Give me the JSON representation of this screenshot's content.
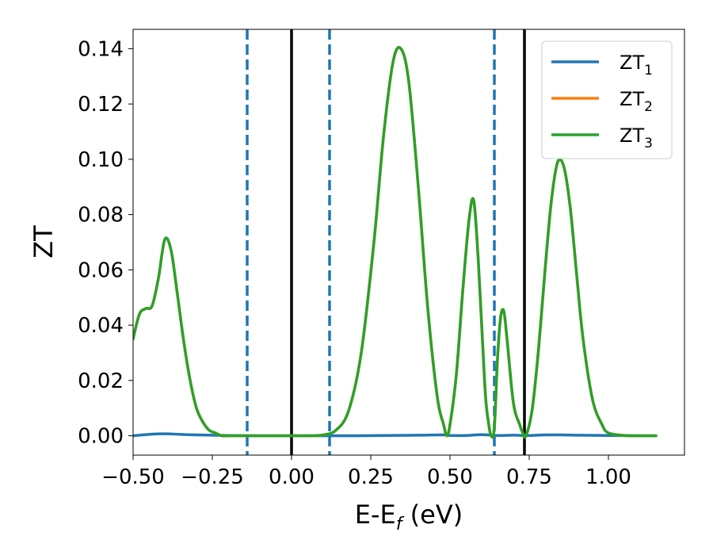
{
  "chart_data": {
    "type": "line",
    "xlabel": "E-E",
    "xlabel_sub": "f",
    "xlabel_unit": " (eV)",
    "ylabel": "ZT",
    "xlim": [
      -0.5,
      1.24
    ],
    "ylim": [
      -0.007,
      0.147
    ],
    "x_ticks": [
      -0.5,
      -0.25,
      0.0,
      0.25,
      0.5,
      0.75,
      1.0
    ],
    "x_tick_labels": [
      "−0.50",
      "−0.25",
      "0.00",
      "0.25",
      "0.50",
      "0.75",
      "1.00"
    ],
    "y_ticks": [
      0.0,
      0.02,
      0.04,
      0.06,
      0.08,
      0.1,
      0.12,
      0.14
    ],
    "y_tick_labels": [
      "0.00",
      "0.02",
      "0.04",
      "0.06",
      "0.08",
      "0.10",
      "0.12",
      "0.14"
    ],
    "grid": false,
    "legend_position": "top-right",
    "vertical_lines": [
      {
        "x": -0.14,
        "style": "dashed",
        "color": "#1f77b4"
      },
      {
        "x": 0.0,
        "style": "solid",
        "color": "#000000"
      },
      {
        "x": 0.12,
        "style": "dashed",
        "color": "#1f77b4"
      },
      {
        "x": 0.64,
        "style": "dashed",
        "color": "#1f77b4"
      },
      {
        "x": 0.735,
        "style": "solid",
        "color": "#000000"
      }
    ],
    "series": [
      {
        "name": "ZT",
        "sub": "1",
        "color": "#1f77b4",
        "x": [
          -0.5,
          -0.45,
          -0.4,
          -0.35,
          -0.3,
          -0.2,
          -0.1,
          0.0,
          0.1,
          0.2,
          0.3,
          0.4,
          0.48,
          0.5,
          0.55,
          0.6,
          0.65,
          0.7,
          0.75,
          0.8,
          0.85,
          0.9,
          1.0,
          1.1,
          1.15
        ],
        "y": [
          0.0,
          0.0005,
          0.0007,
          0.0005,
          0.0003,
          0.0001,
          0.0,
          0.0,
          0.0,
          0.0,
          0.0001,
          0.0002,
          0.0003,
          0.0001,
          0.0001,
          0.0004,
          0.0001,
          0.0002,
          0.0001,
          0.0003,
          0.0003,
          0.0002,
          0.0001,
          0.0,
          0.0
        ]
      },
      {
        "name": "ZT",
        "sub": "2",
        "color": "#ff7f0e",
        "x": [
          -0.5,
          -0.48,
          -0.46,
          -0.44,
          -0.42,
          -0.4,
          -0.38,
          -0.36,
          -0.34,
          -0.32,
          -0.3,
          -0.28,
          -0.26,
          -0.24,
          -0.22,
          -0.2,
          -0.15,
          -0.1,
          -0.05,
          0.0,
          0.05,
          0.1,
          0.14,
          0.18,
          0.22,
          0.26,
          0.29,
          0.32,
          0.345,
          0.37,
          0.4,
          0.43,
          0.46,
          0.48,
          0.49,
          0.5,
          0.52,
          0.54,
          0.56,
          0.575,
          0.59,
          0.61,
          0.62,
          0.63,
          0.64,
          0.65,
          0.66,
          0.67,
          0.68,
          0.7,
          0.72,
          0.73,
          0.74,
          0.76,
          0.78,
          0.8,
          0.82,
          0.84,
          0.86,
          0.88,
          0.9,
          0.92,
          0.95,
          0.98,
          1.0,
          1.05,
          1.1,
          1.15
        ],
        "y": [
          0.035,
          0.044,
          0.046,
          0.047,
          0.057,
          0.071,
          0.067,
          0.051,
          0.034,
          0.02,
          0.01,
          0.005,
          0.002,
          0.001,
          0.0,
          0.0,
          0.0,
          0.0,
          0.0,
          0.0,
          0.0,
          0.0003,
          0.002,
          0.009,
          0.03,
          0.07,
          0.108,
          0.135,
          0.14,
          0.128,
          0.09,
          0.046,
          0.014,
          0.004,
          0.0,
          0.004,
          0.022,
          0.052,
          0.078,
          0.085,
          0.062,
          0.018,
          0.006,
          0.0,
          0.003,
          0.028,
          0.043,
          0.045,
          0.035,
          0.012,
          0.004,
          0.001,
          0.0,
          0.01,
          0.032,
          0.06,
          0.085,
          0.099,
          0.097,
          0.082,
          0.058,
          0.035,
          0.013,
          0.004,
          0.001,
          0.0001,
          0.0,
          0.0
        ]
      },
      {
        "name": "ZT",
        "sub": "3",
        "color": "#2ca02c",
        "x": [
          -0.5,
          -0.48,
          -0.46,
          -0.44,
          -0.42,
          -0.4,
          -0.38,
          -0.36,
          -0.34,
          -0.32,
          -0.3,
          -0.28,
          -0.26,
          -0.24,
          -0.22,
          -0.2,
          -0.15,
          -0.1,
          -0.05,
          0.0,
          0.05,
          0.1,
          0.14,
          0.18,
          0.22,
          0.26,
          0.29,
          0.32,
          0.345,
          0.37,
          0.4,
          0.43,
          0.46,
          0.48,
          0.49,
          0.5,
          0.52,
          0.54,
          0.56,
          0.575,
          0.59,
          0.61,
          0.62,
          0.63,
          0.64,
          0.65,
          0.66,
          0.67,
          0.68,
          0.7,
          0.72,
          0.73,
          0.74,
          0.76,
          0.78,
          0.8,
          0.82,
          0.84,
          0.86,
          0.88,
          0.9,
          0.92,
          0.95,
          0.98,
          1.0,
          1.05,
          1.1,
          1.15
        ],
        "y": [
          0.035,
          0.044,
          0.046,
          0.047,
          0.057,
          0.071,
          0.067,
          0.051,
          0.034,
          0.02,
          0.01,
          0.005,
          0.002,
          0.001,
          0.0,
          0.0,
          0.0,
          0.0,
          0.0,
          0.0,
          0.0,
          0.0003,
          0.002,
          0.009,
          0.03,
          0.07,
          0.108,
          0.135,
          0.14,
          0.128,
          0.09,
          0.046,
          0.014,
          0.004,
          0.0,
          0.004,
          0.022,
          0.052,
          0.078,
          0.085,
          0.062,
          0.018,
          0.006,
          0.0,
          0.003,
          0.028,
          0.043,
          0.045,
          0.035,
          0.012,
          0.004,
          0.001,
          0.0,
          0.01,
          0.032,
          0.06,
          0.085,
          0.099,
          0.097,
          0.082,
          0.058,
          0.035,
          0.013,
          0.004,
          0.001,
          0.0001,
          0.0,
          0.0
        ]
      }
    ]
  }
}
